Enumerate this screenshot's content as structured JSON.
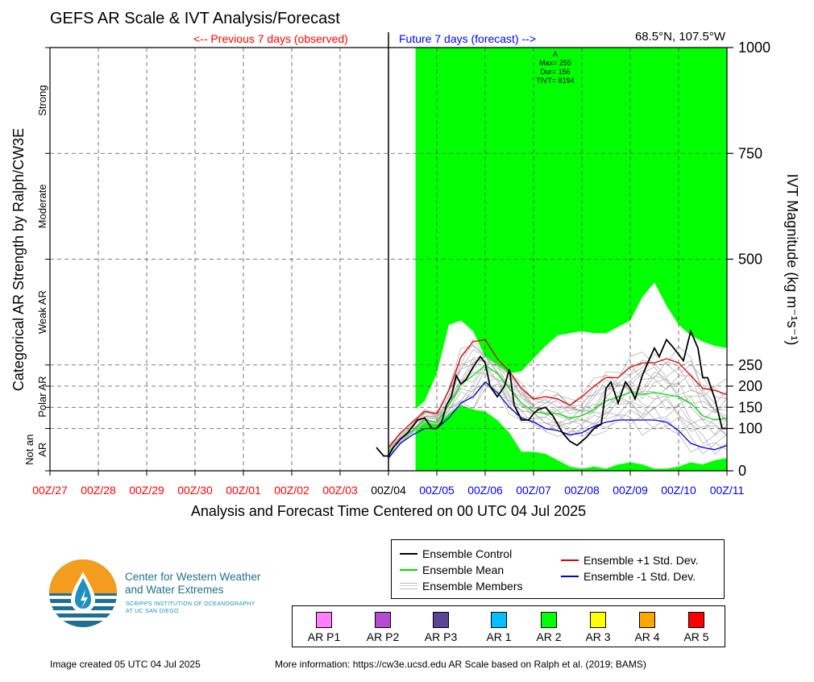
{
  "title": "GEFS AR Scale & IVT Analysis/Forecast",
  "previous_label": "<-- Previous 7 days (observed)",
  "future_label": "Future 7 days (forecast) -->",
  "location": "68.5°N, 107.5°W",
  "colors": {
    "previous": "#ff0000",
    "future": "#0000ff",
    "forecast_shading": "#00ff00",
    "control": "#000000",
    "mean": "#00e000",
    "members": "#b4b4b4",
    "plus_std": "#e00000",
    "minus_std": "#0000e0"
  },
  "left_axis": {
    "label": "Categorical AR Strength by Ralph/CW3E",
    "categories": [
      {
        "label": "Strong",
        "from": 750,
        "to": 1000
      },
      {
        "label": "Moderate",
        "from": 500,
        "to": 750
      },
      {
        "label": "Weak AR",
        "from": 250,
        "to": 500
      },
      {
        "label": "Polar AR",
        "from": 100,
        "to": 250
      },
      {
        "label_lines": [
          "Not an",
          "AR"
        ],
        "from": 0,
        "to": 100
      }
    ]
  },
  "chart_data": {
    "type": "line",
    "title": "GEFS AR Scale & IVT Analysis/Forecast",
    "xlabel": "Analysis and Forecast Time Centered on 00 UTC 04 Jul 2025",
    "ylabel": "IVT Magnitude (kg m⁻¹s⁻¹)",
    "x_unit": "days since 00Z/27",
    "xlim": [
      0,
      14
    ],
    "ylim": [
      0,
      1000
    ],
    "x_ticks": [
      {
        "label": "00Z/27",
        "x": 0,
        "period": "observed"
      },
      {
        "label": "00Z/28",
        "x": 1,
        "period": "observed"
      },
      {
        "label": "00Z/29",
        "x": 2,
        "period": "observed"
      },
      {
        "label": "00Z/30",
        "x": 3,
        "period": "observed"
      },
      {
        "label": "00Z/01",
        "x": 4,
        "period": "observed"
      },
      {
        "label": "00Z/02",
        "x": 5,
        "period": "observed"
      },
      {
        "label": "00Z/03",
        "x": 6,
        "period": "observed"
      },
      {
        "label": "00Z/04",
        "x": 7,
        "period": "now"
      },
      {
        "label": "00Z/05",
        "x": 8,
        "period": "forecast"
      },
      {
        "label": "00Z/06",
        "x": 9,
        "period": "forecast"
      },
      {
        "label": "00Z/07",
        "x": 10,
        "period": "forecast"
      },
      {
        "label": "00Z/08",
        "x": 11,
        "period": "forecast"
      },
      {
        "label": "00Z/09",
        "x": 12,
        "period": "forecast"
      },
      {
        "label": "00Z/10",
        "x": 13,
        "period": "forecast"
      },
      {
        "label": "00Z/11",
        "x": 14,
        "period": "forecast"
      }
    ],
    "y_ticks": [
      0,
      100,
      150,
      200,
      250,
      500,
      750,
      1000
    ],
    "grid": true,
    "ar_category_shading": {
      "category": "AR 2",
      "x_start": 7.56,
      "x_end": 14
    },
    "annotation": {
      "x": 10.45,
      "lines": [
        "A",
        "Max= 255",
        "Dur= 156",
        "TIVT= 8194"
      ]
    },
    "envelope": {
      "x": [
        7.0,
        7.25,
        7.5,
        7.75,
        8.0,
        8.25,
        8.5,
        8.75,
        9.0,
        9.25,
        9.5,
        9.75,
        10.0,
        10.25,
        10.5,
        10.75,
        11.0,
        11.25,
        11.5,
        11.75,
        12.0,
        12.25,
        12.5,
        12.75,
        13.0,
        13.25,
        13.5,
        13.75,
        14.0
      ],
      "upper": [
        75,
        115,
        140,
        165,
        230,
        345,
        355,
        330,
        270,
        250,
        230,
        235,
        265,
        295,
        320,
        325,
        330,
        325,
        325,
        340,
        355,
        410,
        445,
        390,
        345,
        320,
        305,
        295,
        290
      ],
      "lower": [
        25,
        65,
        90,
        115,
        110,
        135,
        155,
        145,
        140,
        120,
        90,
        45,
        45,
        40,
        25,
        10,
        5,
        10,
        5,
        15,
        20,
        15,
        5,
        5,
        10,
        20,
        15,
        25,
        30
      ]
    },
    "series": [
      {
        "name": "Ensemble Control",
        "role": "control",
        "x": [
          6.75,
          6.9,
          7.0,
          7.1,
          7.25,
          7.4,
          7.5,
          7.6,
          7.75,
          7.9,
          8.0,
          8.1,
          8.2,
          8.3,
          8.4,
          8.5,
          8.6,
          8.75,
          8.9,
          9.0,
          9.1,
          9.25,
          9.4,
          9.5,
          9.6,
          9.75,
          9.9,
          10.0,
          10.1,
          10.25,
          10.4,
          10.5,
          10.6,
          10.75,
          10.9,
          11.0,
          11.1,
          11.25,
          11.4,
          11.5,
          11.6,
          11.75,
          11.9,
          12.0,
          12.1,
          12.25,
          12.4,
          12.5,
          12.6,
          12.75,
          12.9,
          13.0,
          13.1,
          13.25,
          13.4,
          13.5,
          13.6,
          13.75,
          13.9,
          14.0
        ],
        "y": [
          55,
          35,
          35,
          55,
          75,
          90,
          105,
          120,
          125,
          100,
          100,
          115,
          155,
          175,
          225,
          205,
          215,
          245,
          270,
          255,
          200,
          175,
          200,
          240,
          155,
          120,
          120,
          135,
          145,
          150,
          130,
          110,
          90,
          70,
          60,
          70,
          80,
          100,
          110,
          195,
          210,
          160,
          210,
          195,
          170,
          225,
          265,
          290,
          270,
          310,
          290,
          275,
          260,
          330,
          290,
          220,
          220,
          170,
          100,
          100
        ]
      },
      {
        "name": "Ensemble Mean",
        "role": "mean",
        "x": [
          7.0,
          7.25,
          7.5,
          7.75,
          8.0,
          8.25,
          8.5,
          8.75,
          9.0,
          9.25,
          9.5,
          9.75,
          10.0,
          10.25,
          10.5,
          10.75,
          11.0,
          11.25,
          11.5,
          11.75,
          12.0,
          12.25,
          12.5,
          12.75,
          13.0,
          13.25,
          13.5,
          13.75,
          14.0
        ],
        "y": [
          45,
          75,
          95,
          120,
          115,
          155,
          205,
          225,
          250,
          230,
          195,
          160,
          140,
          135,
          135,
          125,
          130,
          145,
          165,
          175,
          185,
          180,
          185,
          180,
          175,
          160,
          130,
          120,
          125
        ]
      },
      {
        "name": "Ensemble +1 Std. Dev.",
        "role": "plus_std",
        "x": [
          7.0,
          7.25,
          7.5,
          7.75,
          8.0,
          8.25,
          8.5,
          8.75,
          9.0,
          9.25,
          9.5,
          9.75,
          10.0,
          10.25,
          10.5,
          10.75,
          11.0,
          11.25,
          11.5,
          11.75,
          12.0,
          12.25,
          12.5,
          12.75,
          13.0,
          13.25,
          13.5,
          13.75,
          14.0
        ],
        "y": [
          55,
          90,
          115,
          140,
          135,
          190,
          270,
          305,
          310,
          265,
          235,
          195,
          170,
          175,
          170,
          155,
          175,
          200,
          220,
          220,
          245,
          255,
          255,
          265,
          255,
          225,
          195,
          190,
          180
        ]
      },
      {
        "name": "Ensemble -1 Std. Dev.",
        "role": "minus_std",
        "x": [
          7.0,
          7.25,
          7.5,
          7.75,
          8.0,
          8.25,
          8.5,
          8.75,
          9.0,
          9.25,
          9.5,
          9.75,
          10.0,
          10.25,
          10.5,
          10.75,
          11.0,
          11.25,
          11.5,
          11.75,
          12.0,
          12.25,
          12.5,
          12.75,
          13.0,
          13.25,
          13.5,
          13.75,
          14.0
        ],
        "y": [
          30,
          65,
          85,
          100,
          100,
          125,
          160,
          175,
          210,
          185,
          150,
          125,
          115,
          100,
          95,
          85,
          90,
          105,
          115,
          120,
          120,
          120,
          120,
          115,
          95,
          65,
          55,
          50,
          60
        ]
      }
    ],
    "members_label": "Ensemble Members"
  },
  "legend": {
    "col1": [
      "Ensemble Control",
      "Ensemble Mean",
      "Ensemble Members"
    ],
    "col2": [
      "Ensemble +1 Std. Dev.",
      "Ensemble -1 Std. Dev."
    ]
  },
  "ar_scale_legend": [
    {
      "label": "AR P1",
      "color": "#ff80ff"
    },
    {
      "label": "AR P2",
      "color": "#b44cd2"
    },
    {
      "label": "AR P3",
      "color": "#5a4696"
    },
    {
      "label": "AR 1",
      "color": "#00c0ff"
    },
    {
      "label": "AR 2",
      "color": "#00ff00"
    },
    {
      "label": "AR 3",
      "color": "#ffff00"
    },
    {
      "label": "AR 4",
      "color": "#ffa500"
    },
    {
      "label": "AR 5",
      "color": "#ff0000"
    }
  ],
  "logo": {
    "line1": "Center for Western Weather",
    "line2": "and Water Extremes",
    "line3": "SCRIPPS INSTITUTION OF OCEANOGRAPHY",
    "line4": "AT UC SAN DIEGO"
  },
  "footer": {
    "created": "Image created 05 UTC 04 Jul 2025",
    "info": "More information: https://cw3e.ucsd.edu AR Scale based on Ralph et al. (2019; BAMS)"
  }
}
